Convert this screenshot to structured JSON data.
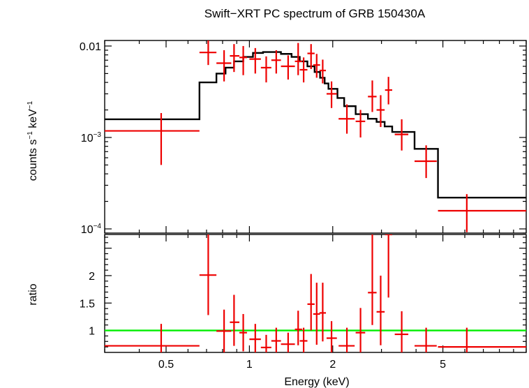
{
  "chart_data": [
    {
      "type": "line",
      "title": "Swift−XRT PC spectrum of GRB 150430A",
      "ylabel_parts": [
        "counts s",
        "−1",
        " keV",
        "−1"
      ],
      "xscale": "log",
      "yscale": "log",
      "xlim": [
        0.3,
        10
      ],
      "ylim": [
        9e-05,
        0.0115
      ],
      "y_ticks": [
        {
          "value": 0.01,
          "base": "0.01",
          "exp": ""
        },
        {
          "value": 0.001,
          "base": "10",
          "exp": "−3"
        },
        {
          "value": 0.0001,
          "base": "10",
          "exp": "−4"
        }
      ],
      "data_series": {
        "color": "#ee0000",
        "points": [
          {
            "x": 0.48,
            "xlo": 0.3,
            "xhi": 0.66,
            "y": 0.00118,
            "ylo": 0.0005,
            "yhi": 0.00185
          },
          {
            "x": 0.71,
            "xlo": 0.66,
            "xhi": 0.76,
            "y": 0.0085,
            "ylo": 0.0062,
            "yhi": 0.0115
          },
          {
            "x": 0.81,
            "xlo": 0.76,
            "xhi": 0.86,
            "y": 0.0065,
            "ylo": 0.0041,
            "yhi": 0.009
          },
          {
            "x": 0.88,
            "xlo": 0.85,
            "xhi": 0.92,
            "y": 0.0078,
            "ylo": 0.0052,
            "yhi": 0.0105
          },
          {
            "x": 0.95,
            "xlo": 0.92,
            "xhi": 0.98,
            "y": 0.0075,
            "ylo": 0.0048,
            "yhi": 0.01
          },
          {
            "x": 1.05,
            "xlo": 1.0,
            "xhi": 1.1,
            "y": 0.0072,
            "ylo": 0.005,
            "yhi": 0.0095
          },
          {
            "x": 1.15,
            "xlo": 1.1,
            "xhi": 1.2,
            "y": 0.0058,
            "ylo": 0.004,
            "yhi": 0.0077
          },
          {
            "x": 1.25,
            "xlo": 1.2,
            "xhi": 1.3,
            "y": 0.007,
            "ylo": 0.005,
            "yhi": 0.009
          },
          {
            "x": 1.38,
            "xlo": 1.3,
            "xhi": 1.46,
            "y": 0.006,
            "ylo": 0.0043,
            "yhi": 0.0079
          },
          {
            "x": 1.5,
            "xlo": 1.46,
            "xhi": 1.55,
            "y": 0.0068,
            "ylo": 0.0048,
            "yhi": 0.0108
          },
          {
            "x": 1.57,
            "xlo": 1.52,
            "xhi": 1.62,
            "y": 0.0055,
            "ylo": 0.004,
            "yhi": 0.0075
          },
          {
            "x": 1.67,
            "xlo": 1.62,
            "xhi": 1.72,
            "y": 0.0083,
            "ylo": 0.0056,
            "yhi": 0.0105
          },
          {
            "x": 1.75,
            "xlo": 1.7,
            "xhi": 1.8,
            "y": 0.0062,
            "ylo": 0.0045,
            "yhi": 0.0082
          },
          {
            "x": 1.84,
            "xlo": 1.79,
            "xhi": 1.89,
            "y": 0.0054,
            "ylo": 0.0039,
            "yhi": 0.0071
          },
          {
            "x": 1.98,
            "xlo": 1.9,
            "xhi": 2.07,
            "y": 0.003,
            "ylo": 0.0021,
            "yhi": 0.0041
          },
          {
            "x": 2.25,
            "xlo": 2.1,
            "xhi": 2.4,
            "y": 0.0016,
            "ylo": 0.0011,
            "yhi": 0.0023
          },
          {
            "x": 2.52,
            "xlo": 2.42,
            "xhi": 2.62,
            "y": 0.0015,
            "ylo": 0.001,
            "yhi": 0.002
          },
          {
            "x": 2.78,
            "xlo": 2.68,
            "xhi": 2.88,
            "y": 0.0028,
            "ylo": 0.0019,
            "yhi": 0.0042
          },
          {
            "x": 2.98,
            "xlo": 2.88,
            "xhi": 3.08,
            "y": 0.002,
            "ylo": 0.0013,
            "yhi": 0.0029
          },
          {
            "x": 3.18,
            "xlo": 3.09,
            "xhi": 3.28,
            "y": 0.0033,
            "ylo": 0.0023,
            "yhi": 0.0046
          },
          {
            "x": 3.55,
            "xlo": 3.35,
            "xhi": 3.75,
            "y": 0.00108,
            "ylo": 0.00072,
            "yhi": 0.00158
          },
          {
            "x": 4.35,
            "xlo": 3.95,
            "xhi": 4.75,
            "y": 0.00055,
            "ylo": 0.00036,
            "yhi": 0.00082
          },
          {
            "x": 6.1,
            "xlo": 4.8,
            "xhi": 10.0,
            "y": 0.000158,
            "ylo": 9.2e-05,
            "yhi": 0.00024
          }
        ]
      },
      "model_series": {
        "color": "#000000",
        "steps": [
          {
            "x0": 0.3,
            "x1": 0.66,
            "y": 0.00158
          },
          {
            "x0": 0.66,
            "x1": 0.76,
            "y": 0.004
          },
          {
            "x0": 0.76,
            "x1": 0.82,
            "y": 0.005
          },
          {
            "x0": 0.82,
            "x1": 0.88,
            "y": 0.0058
          },
          {
            "x0": 0.88,
            "x1": 0.95,
            "y": 0.0068
          },
          {
            "x0": 0.95,
            "x1": 1.03,
            "y": 0.0076
          },
          {
            "x0": 1.03,
            "x1": 1.12,
            "y": 0.0084
          },
          {
            "x0": 1.12,
            "x1": 1.3,
            "y": 0.0086
          },
          {
            "x0": 1.3,
            "x1": 1.42,
            "y": 0.0082
          },
          {
            "x0": 1.42,
            "x1": 1.52,
            "y": 0.0076
          },
          {
            "x0": 1.52,
            "x1": 1.62,
            "y": 0.0068
          },
          {
            "x0": 1.62,
            "x1": 1.72,
            "y": 0.006
          },
          {
            "x0": 1.72,
            "x1": 1.8,
            "y": 0.0052
          },
          {
            "x0": 1.8,
            "x1": 1.87,
            "y": 0.0045
          },
          {
            "x0": 1.87,
            "x1": 1.93,
            "y": 0.0039
          },
          {
            "x0": 1.93,
            "x1": 2.08,
            "y": 0.0034
          },
          {
            "x0": 2.08,
            "x1": 2.2,
            "y": 0.0027
          },
          {
            "x0": 2.2,
            "x1": 2.42,
            "y": 0.0022
          },
          {
            "x0": 2.42,
            "x1": 2.68,
            "y": 0.0018
          },
          {
            "x0": 2.68,
            "x1": 2.88,
            "y": 0.0016
          },
          {
            "x0": 2.88,
            "x1": 3.08,
            "y": 0.00148
          },
          {
            "x0": 3.08,
            "x1": 3.28,
            "y": 0.00132
          },
          {
            "x0": 3.28,
            "x1": 3.95,
            "y": 0.00115
          },
          {
            "x0": 3.95,
            "x1": 4.8,
            "y": 0.00075
          },
          {
            "x0": 4.8,
            "x1": 10.0,
            "y": 0.00022
          }
        ]
      }
    },
    {
      "type": "scatter",
      "ylabel": "ratio",
      "xlabel": "Energy (keV)",
      "xscale": "log",
      "xlim": [
        0.3,
        10
      ],
      "ylim": [
        0.6,
        2.75
      ],
      "x_ticks": [
        {
          "value": 0.5,
          "label": "0.5"
        },
        {
          "value": 1,
          "label": "1"
        },
        {
          "value": 2,
          "label": "2"
        },
        {
          "value": 5,
          "label": "5"
        }
      ],
      "y_ticks": [
        {
          "value": 1,
          "label": "1"
        },
        {
          "value": 1.5,
          "label": "1.5"
        },
        {
          "value": 2,
          "label": "2"
        }
      ],
      "reference_line": {
        "y": 1.0,
        "color": "#00ee00"
      },
      "data_series": {
        "color": "#ee0000",
        "points": [
          {
            "x": 0.48,
            "xlo": 0.3,
            "xhi": 0.66,
            "y": 0.72,
            "ylo": 0.6,
            "yhi": 1.12
          },
          {
            "x": 0.71,
            "xlo": 0.66,
            "xhi": 0.76,
            "y": 2.01,
            "ylo": 1.28,
            "yhi": 2.75
          },
          {
            "x": 0.81,
            "xlo": 0.76,
            "xhi": 0.86,
            "y": 0.99,
            "ylo": 0.6,
            "yhi": 1.38
          },
          {
            "x": 0.88,
            "xlo": 0.85,
            "xhi": 0.92,
            "y": 1.15,
            "ylo": 0.72,
            "yhi": 1.65
          },
          {
            "x": 0.95,
            "xlo": 0.92,
            "xhi": 0.98,
            "y": 0.96,
            "ylo": 0.62,
            "yhi": 1.3
          },
          {
            "x": 1.05,
            "xlo": 1.0,
            "xhi": 1.1,
            "y": 0.84,
            "ylo": 0.6,
            "yhi": 1.12
          },
          {
            "x": 1.15,
            "xlo": 1.1,
            "xhi": 1.2,
            "y": 0.69,
            "ylo": 0.6,
            "yhi": 0.92
          },
          {
            "x": 1.25,
            "xlo": 1.2,
            "xhi": 1.3,
            "y": 0.81,
            "ylo": 0.6,
            "yhi": 1.05
          },
          {
            "x": 1.38,
            "xlo": 1.3,
            "xhi": 1.46,
            "y": 0.75,
            "ylo": 0.6,
            "yhi": 0.96
          },
          {
            "x": 1.5,
            "xlo": 1.46,
            "xhi": 1.55,
            "y": 1.02,
            "ylo": 0.73,
            "yhi": 1.36
          },
          {
            "x": 1.57,
            "xlo": 1.52,
            "xhi": 1.62,
            "y": 0.81,
            "ylo": 0.6,
            "yhi": 1.05
          },
          {
            "x": 1.67,
            "xlo": 1.62,
            "xhi": 1.72,
            "y": 1.48,
            "ylo": 1.0,
            "yhi": 2.03
          },
          {
            "x": 1.75,
            "xlo": 1.7,
            "xhi": 1.8,
            "y": 1.3,
            "ylo": 0.74,
            "yhi": 1.87
          },
          {
            "x": 1.84,
            "xlo": 1.79,
            "xhi": 1.89,
            "y": 1.32,
            "ylo": 0.8,
            "yhi": 1.87
          },
          {
            "x": 1.98,
            "xlo": 1.9,
            "xhi": 2.07,
            "y": 0.86,
            "ylo": 0.6,
            "yhi": 1.17
          },
          {
            "x": 2.25,
            "xlo": 2.1,
            "xhi": 2.4,
            "y": 0.72,
            "ylo": 0.6,
            "yhi": 1.05
          },
          {
            "x": 2.52,
            "xlo": 2.42,
            "xhi": 2.62,
            "y": 0.96,
            "ylo": 0.6,
            "yhi": 1.41
          },
          {
            "x": 2.78,
            "xlo": 2.68,
            "xhi": 2.88,
            "y": 1.69,
            "ylo": 1.1,
            "yhi": 2.75
          },
          {
            "x": 2.98,
            "xlo": 2.88,
            "xhi": 3.08,
            "y": 1.34,
            "ylo": 0.73,
            "yhi": 2.0
          },
          {
            "x": 3.18,
            "xlo": 3.09,
            "xhi": 3.28,
            "y": 2.75,
            "ylo": 1.6,
            "yhi": 2.75
          },
          {
            "x": 3.55,
            "xlo": 3.35,
            "xhi": 3.75,
            "y": 0.93,
            "ylo": 0.6,
            "yhi": 1.35
          },
          {
            "x": 4.35,
            "xlo": 3.95,
            "xhi": 4.75,
            "y": 0.72,
            "ylo": 0.6,
            "yhi": 1.05
          },
          {
            "x": 6.1,
            "xlo": 4.8,
            "xhi": 10.0,
            "y": 0.7,
            "ylo": 0.6,
            "yhi": 1.05
          }
        ]
      }
    }
  ]
}
